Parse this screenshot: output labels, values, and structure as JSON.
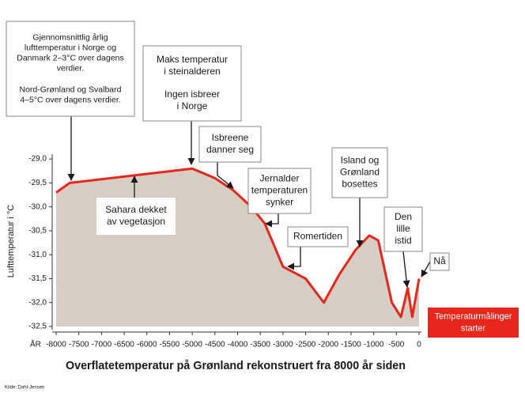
{
  "chart_data": {
    "type": "area",
    "title": "Overflatetemperatur på Grønland rekonstruert fra 8000 år siden",
    "source": "Kilde: Dahl-Jensen",
    "x_label": "ÅR",
    "y_label": "Lufttemperatur i °C",
    "x": [
      -8000,
      -7700,
      -5000,
      -4500,
      -4100,
      -3700,
      -3400,
      -3000,
      -2500,
      -2100,
      -1750,
      -1400,
      -1100,
      -900,
      -600,
      -400,
      -250,
      -150,
      0
    ],
    "series": [
      {
        "name": "Lufttemperatur",
        "color": "#e8261c",
        "fill": "#d6cdc5",
        "values": [
          -29.7,
          -29.5,
          -29.2,
          -29.4,
          -29.65,
          -30.0,
          -30.35,
          -31.25,
          -31.5,
          -32.0,
          -31.4,
          -30.9,
          -30.6,
          -30.7,
          -32.0,
          -32.3,
          -31.7,
          -32.3,
          -31.5
        ]
      }
    ],
    "xlim": [
      -8000,
      0
    ],
    "ylim": [
      -32.5,
      -28.8
    ],
    "xticks": [
      -8000,
      -7500,
      -7000,
      -6500,
      -6000,
      -5500,
      -5000,
      -4500,
      -4000,
      -3500,
      -3000,
      -2500,
      -2000,
      -1500,
      -1000,
      -500,
      0
    ],
    "yticks": [
      {
        "value": -29.0,
        "label": "-29,0"
      },
      {
        "value": -29.5,
        "label": "-29,5"
      },
      {
        "value": -30.0,
        "label": "-30,0"
      },
      {
        "value": -30.5,
        "label": "-30,5"
      },
      {
        "value": -31.0,
        "label": "-31,0"
      },
      {
        "value": -31.5,
        "label": "-31,5"
      },
      {
        "value": -32.0,
        "label": "-32,0"
      },
      {
        "value": -32.5,
        "label": "-32,5"
      }
    ],
    "grid": false,
    "annotations": [
      {
        "lines": [
          "Gjennomsnittlig årlig",
          "lufttemperatur i Norge og",
          "Danmark 2–3°C over dagens",
          "verdier.",
          "Nord-Grønland og Svalbard",
          "4–5°C over dagens verdier."
        ]
      },
      {
        "lines": [
          "Maks temperatur",
          "i steinalderen",
          "Ingen isbreer",
          "i Norge"
        ]
      },
      {
        "lines": [
          "Isbreene",
          "danner seg"
        ]
      },
      {
        "lines": [
          "Jernalder",
          "temperaturen",
          "synker"
        ]
      },
      {
        "lines": [
          "Romertiden"
        ]
      },
      {
        "lines": [
          "Island og",
          "Grønland",
          "bosettes"
        ]
      },
      {
        "lines": [
          "Den",
          "lille",
          "istid"
        ]
      },
      {
        "lines": [
          "Nå"
        ]
      },
      {
        "lines": [
          "Temperaturmålinger",
          "starter"
        ]
      },
      {
        "lines": [
          "Sahara dekket",
          "av vegetasjon"
        ]
      }
    ]
  }
}
